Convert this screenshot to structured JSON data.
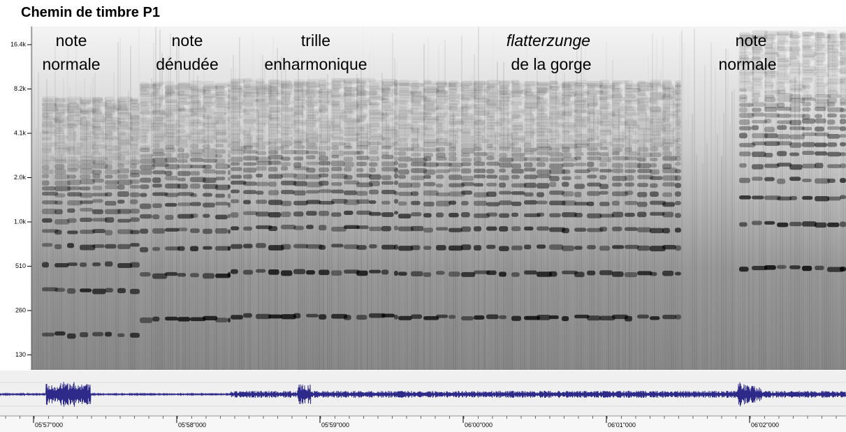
{
  "title": "Chemin de timbre P1",
  "frequency_axis": {
    "labels": [
      "16.4k",
      "8.2k",
      "4.1k",
      "2.0k",
      "1.0k",
      "510",
      "260",
      "130"
    ]
  },
  "annotations": [
    {
      "lines": [
        "note",
        "normale"
      ]
    },
    {
      "lines": [
        "note",
        "dénudée"
      ]
    },
    {
      "lines": [
        "trille",
        "enharmonique"
      ]
    },
    {
      "lines": [
        "flatterzunge",
        "de la gorge"
      ]
    },
    {
      "lines": [
        "note",
        "normale"
      ]
    }
  ],
  "time_axis": {
    "labels": [
      "05'57\"000",
      "05'58\"000",
      "05'59\"000",
      "06'00\"000",
      "06'01\"000",
      "06'02\"000"
    ]
  }
}
